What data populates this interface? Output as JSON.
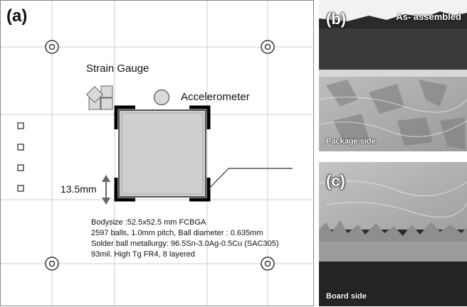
{
  "panel_a": {
    "label": "(a)",
    "strain_gauge_label": "Strain Gauge",
    "accelerometer_label": "Accelerometer",
    "dimension_label": "13.5mm",
    "spec_lines": [
      "Bodysize :52.5x52.5 mm FCBGA",
      "2597 balls, 1.0mm pitch, Ball diameter : 0.635mm",
      "Solder ball metallurgy: 96.5Sn-3.0Ag-0.5Cu (SAC305)",
      "93mil. High Tg FR4, 8 layered"
    ]
  },
  "panel_b": {
    "label": "(b)",
    "top_caption": "As- assembled",
    "bottom_caption": "Package side"
  },
  "panel_c": {
    "label": "(c)",
    "bottom_caption": "Board side"
  }
}
